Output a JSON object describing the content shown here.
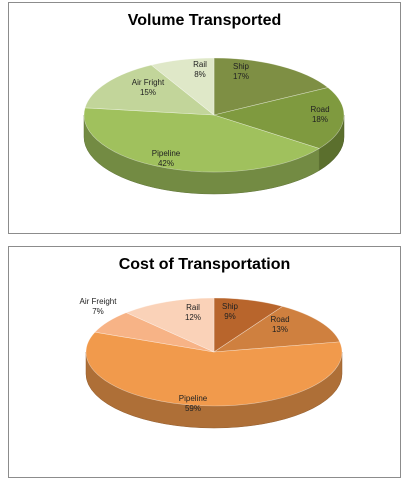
{
  "chart_data": [
    {
      "type": "pie",
      "title": "Volume Transported",
      "slices": [
        {
          "label": "Ship",
          "value": 17,
          "display": "17%",
          "color": "#7e8f44"
        },
        {
          "label": "Road",
          "value": 18,
          "display": "18%",
          "color": "#7f9a3f"
        },
        {
          "label": "Pipeline",
          "value": 42,
          "display": "42%",
          "color": "#a0c15d"
        },
        {
          "label": "Air Fright",
          "value": 15,
          "display": "15%",
          "color": "#c2d59a"
        },
        {
          "label": "Rail",
          "value": 8,
          "display": "8%",
          "color": "#dfe8c8"
        }
      ],
      "style": "3d-pie"
    },
    {
      "type": "pie",
      "title": "Cost of Transportation",
      "slices": [
        {
          "label": "Ship",
          "value": 9,
          "display": "9%",
          "color": "#b8652c"
        },
        {
          "label": "Road",
          "value": 13,
          "display": "13%",
          "color": "#cf803f"
        },
        {
          "label": "Pipeline",
          "value": 59,
          "display": "59%",
          "color": "#f19a4c"
        },
        {
          "label": "Air Freight",
          "value": 7,
          "display": "7%",
          "color": "#f7b386"
        },
        {
          "label": "Rail",
          "value": 12,
          "display": "12%",
          "color": "#fad2b8"
        }
      ],
      "style": "3d-pie"
    }
  ]
}
